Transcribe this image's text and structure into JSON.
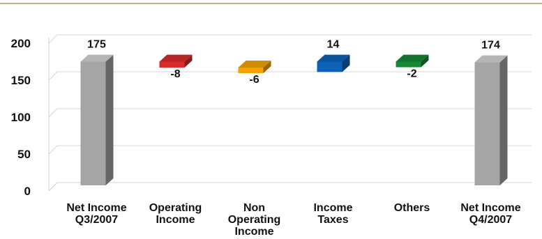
{
  "chart_data": {
    "type": "bar",
    "categories": [
      [
        "Net Income",
        "Q3/2007"
      ],
      [
        "Operating",
        "Income"
      ],
      [
        "Non",
        "Operating",
        "Income"
      ],
      [
        "Income",
        "Taxes"
      ],
      [
        "Others"
      ],
      [
        "Net Income",
        "Q4/2007"
      ]
    ],
    "values": [
      175,
      -8,
      -6,
      14,
      -2,
      174
    ],
    "data_labels": [
      "175",
      "-8",
      "-6",
      "14",
      "-2",
      "174"
    ],
    "bar_kind": [
      "total",
      "delta",
      "delta",
      "delta",
      "delta",
      "total"
    ],
    "waterfall_base": [
      0,
      175,
      167,
      161,
      175,
      0
    ],
    "colors": [
      "#a6a5a5",
      "#d92b2b",
      "#f5a300",
      "#0d62b8",
      "#168a35",
      "#a6a5a5"
    ],
    "ylim": [
      0,
      200
    ],
    "yticks": [
      0,
      50,
      100,
      150,
      200
    ],
    "grid": true,
    "title": "",
    "xlabel": "",
    "ylabel": ""
  },
  "header_rule_color": "#c9b27a"
}
